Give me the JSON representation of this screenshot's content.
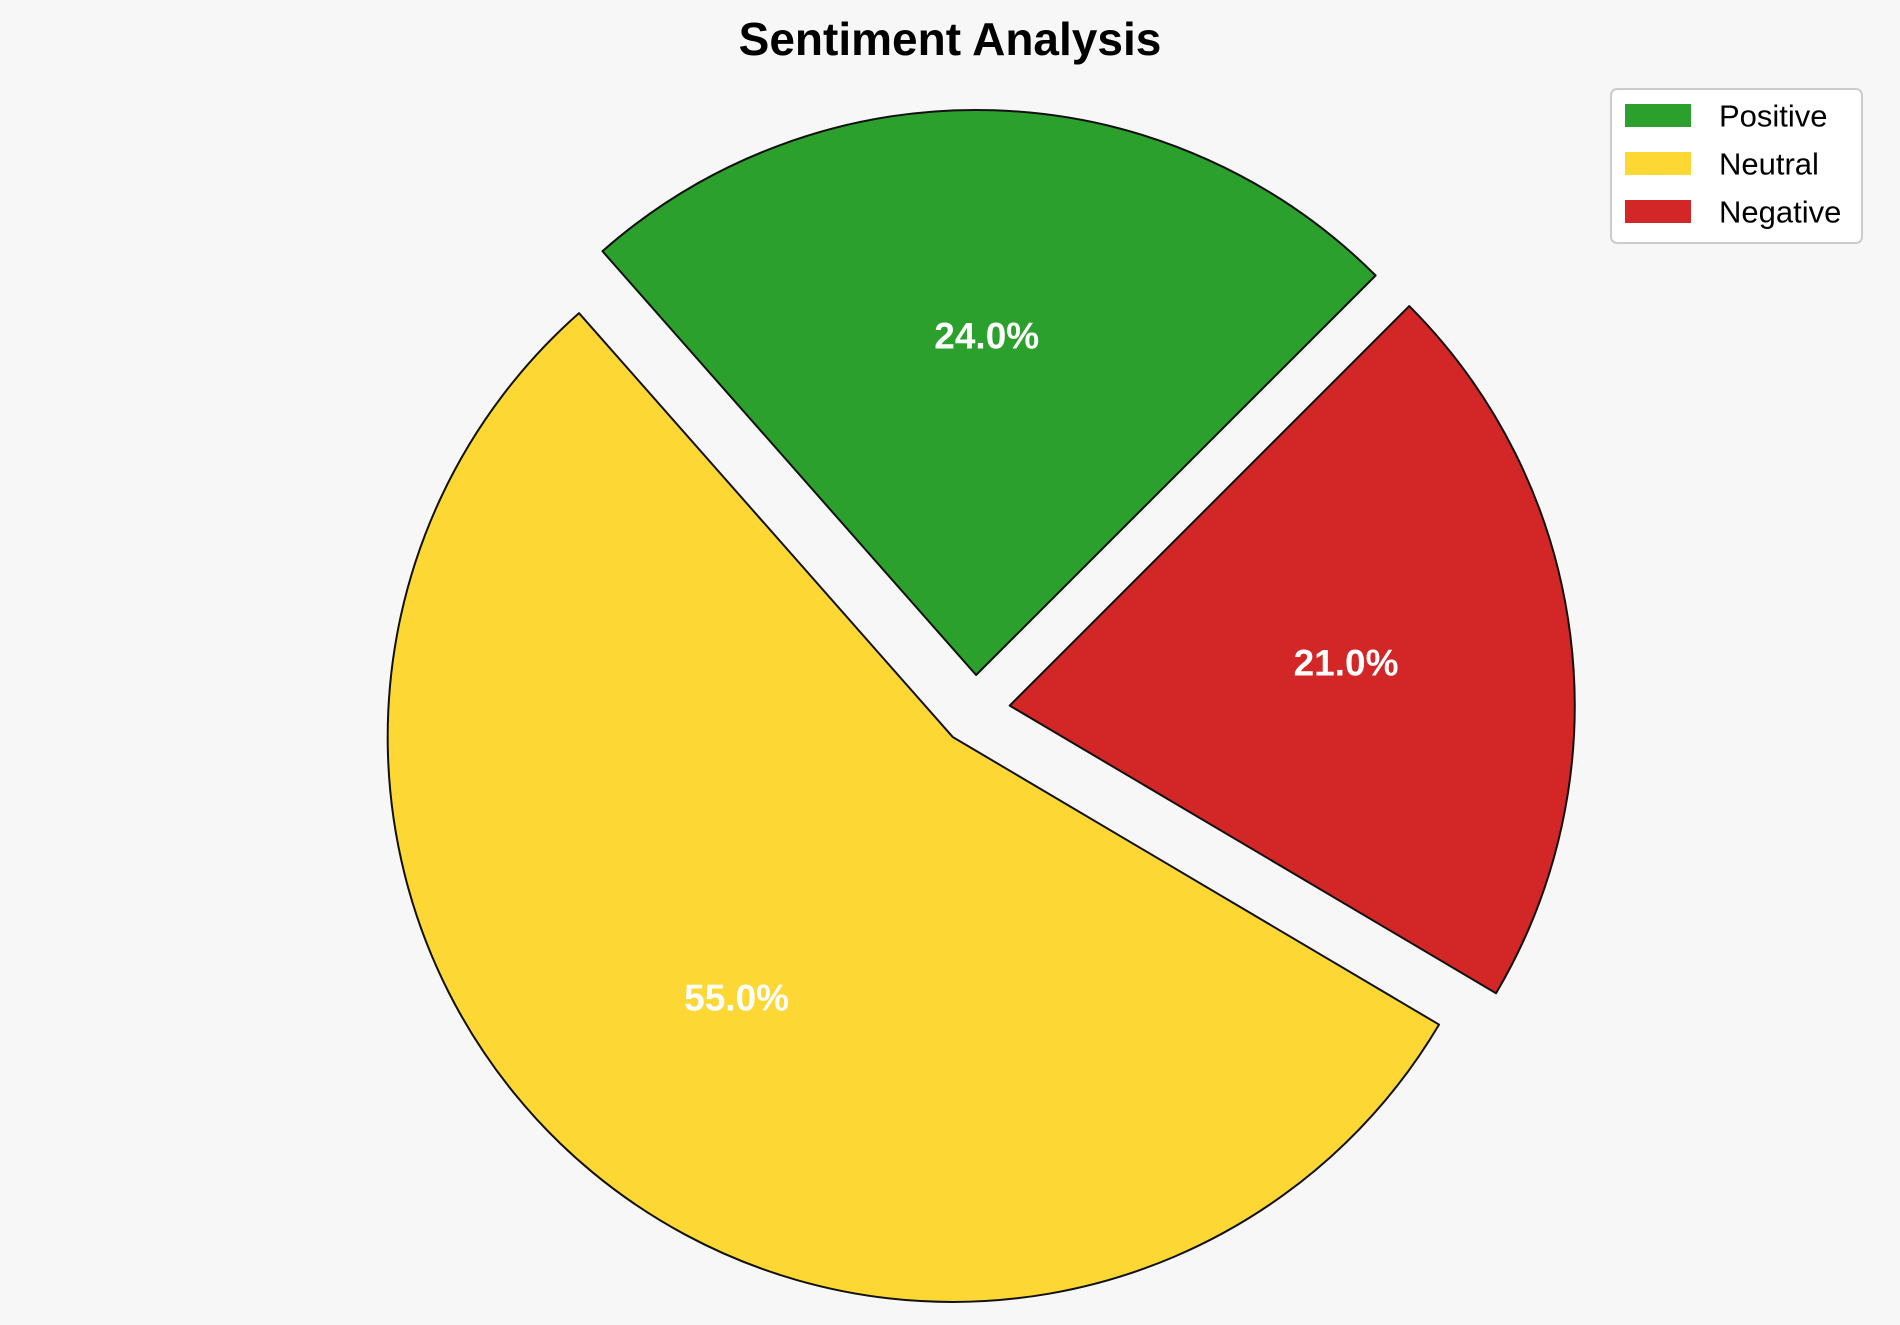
{
  "chart_data": {
    "type": "pie",
    "title": "Sentiment Analysis",
    "categories": [
      "Positive",
      "Neutral",
      "Negative"
    ],
    "values": [
      24.0,
      55.0,
      21.0
    ],
    "labels": [
      "24.0%",
      "55.0%",
      "21.0%"
    ],
    "colors": [
      "#2ca02c",
      "#fdd835",
      "#d32626"
    ],
    "exploded": true,
    "legend": "top-right",
    "grid": false
  }
}
